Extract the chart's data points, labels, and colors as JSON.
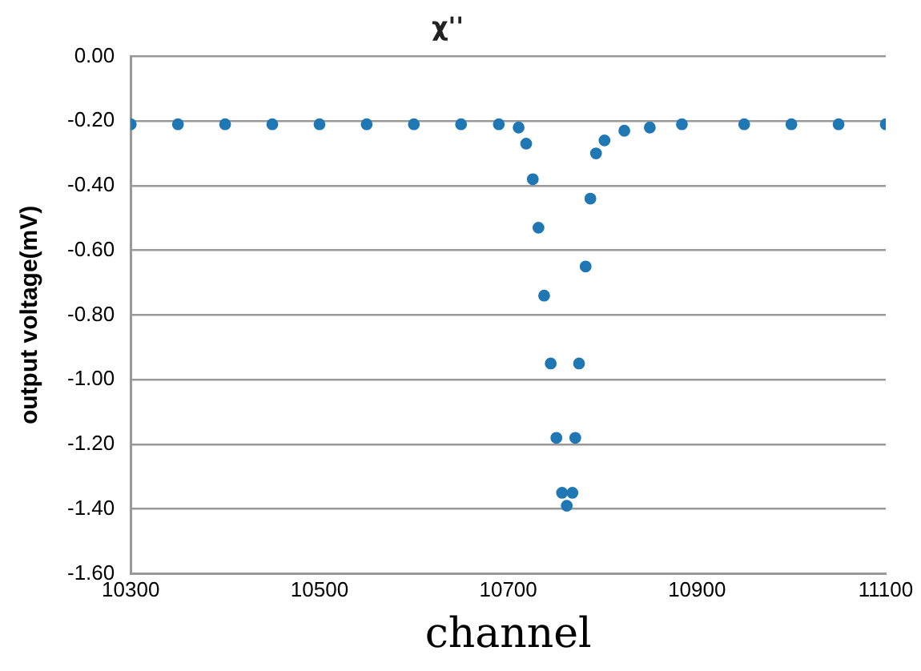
{
  "chart_data": {
    "type": "scatter",
    "title": "χ''",
    "xlabel": "channel",
    "ylabel": "output voltage(mV)",
    "xlim": [
      10300,
      11100
    ],
    "xticks": [
      10300,
      10500,
      10700,
      10900,
      11100
    ],
    "ylim": [
      -1.6,
      0
    ],
    "yticks": [
      {
        "value": 0,
        "label": "0.00"
      },
      {
        "value": -0.2,
        "label": "-0.20"
      },
      {
        "value": -0.4,
        "label": "-0.40"
      },
      {
        "value": -0.6,
        "label": "-0.60"
      },
      {
        "value": -0.8,
        "label": "-0.80"
      },
      {
        "value": -1,
        "label": "-1.00"
      },
      {
        "value": -1.2,
        "label": "-1.20"
      },
      {
        "value": -1.4,
        "label": "-1.40"
      },
      {
        "value": -1.6,
        "label": "-1.60"
      }
    ],
    "grid": "y",
    "marker": "circle",
    "series": [
      {
        "color": "#1f77b4",
        "x": [
          10300,
          10350,
          10400,
          10450,
          10500,
          10550,
          10600,
          10650,
          10690,
          10711,
          10719,
          10726,
          10732,
          10738,
          10745,
          10751,
          10757,
          10762,
          10768,
          10771,
          10775,
          10782,
          10787,
          10793,
          10802,
          10823,
          10850,
          10884,
          10950,
          11000,
          11050,
          11100
        ],
        "values": [
          -0.21,
          -0.21,
          -0.21,
          -0.21,
          -0.21,
          -0.21,
          -0.21,
          -0.21,
          -0.21,
          -0.22,
          -0.27,
          -0.38,
          -0.53,
          -0.74,
          -0.95,
          -1.18,
          -1.35,
          -1.39,
          -1.35,
          -1.18,
          -0.95,
          -0.65,
          -0.44,
          -0.3,
          -0.26,
          -0.23,
          -0.22,
          -0.21,
          -0.21,
          -0.21,
          -0.21,
          -0.21
        ]
      }
    ]
  }
}
